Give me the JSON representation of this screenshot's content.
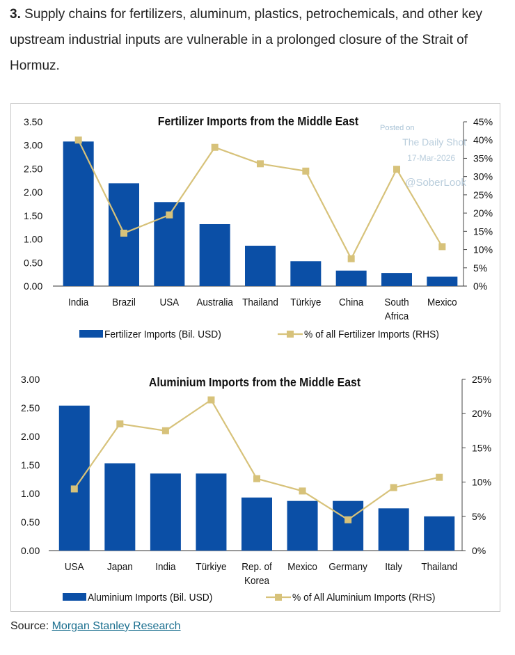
{
  "intro": {
    "number": "3.",
    "text": "Supply chains for fertilizers, aluminum, plastics, petrochemicals, and other key upstream industrial inputs are vulnerable in a prolonged closure of the Strait of Hormuz."
  },
  "watermark": {
    "line1": "Posted on",
    "line2": "The Daily Shot",
    "line3": "17-Mar-2026",
    "line4": "@SoberLook"
  },
  "source": {
    "label": "Source:",
    "link_text": "Morgan Stanley Research"
  },
  "colors": {
    "bar": "#0b4fa6",
    "line": "#d7c27a",
    "axis": "#000000"
  },
  "chart_data": [
    {
      "type": "bar",
      "title": "Fertilizer Imports from the Middle East",
      "categories": [
        "India",
        "Brazil",
        "USA",
        "Australia",
        "Thailand",
        "Türkiye",
        "China",
        "South\nAfrica",
        "Mexico"
      ],
      "series": [
        {
          "name": "Fertilizer Imports (Bil. USD)",
          "axis": "left",
          "kind": "bar",
          "values": [
            3.08,
            2.19,
            1.79,
            1.32,
            0.86,
            0.53,
            0.33,
            0.28,
            0.2
          ]
        },
        {
          "name": "% of all Fertilizer Imports (RHS)",
          "axis": "right",
          "kind": "line",
          "values": [
            40.0,
            14.5,
            19.5,
            38.0,
            33.5,
            31.5,
            7.5,
            32.0,
            10.8
          ]
        }
      ],
      "yleft": {
        "min": 0,
        "max": 3.5,
        "ticks": [
          "0.00",
          "0.50",
          "1.00",
          "1.50",
          "2.00",
          "2.50",
          "3.00",
          "3.50"
        ]
      },
      "yright": {
        "min": 0,
        "max": 45,
        "ticks": [
          "0%",
          "5%",
          "10%",
          "15%",
          "20%",
          "25%",
          "30%",
          "35%",
          "40%",
          "45%"
        ]
      },
      "legend_position": "bottom"
    },
    {
      "type": "bar",
      "title": "Aluminium Imports from the Middle East",
      "categories": [
        "USA",
        "Japan",
        "India",
        "Türkiye",
        "Rep. of\nKorea",
        "Mexico",
        "Germany",
        "Italy",
        "Thailand"
      ],
      "series": [
        {
          "name": "Aluminium Imports (Bil. USD)",
          "axis": "left",
          "kind": "bar",
          "values": [
            2.54,
            1.53,
            1.35,
            1.35,
            0.93,
            0.87,
            0.87,
            0.74,
            0.6
          ]
        },
        {
          "name": "% of All Aluminium Imports (RHS)",
          "axis": "right",
          "kind": "line",
          "values": [
            9.0,
            18.5,
            17.5,
            22.0,
            10.5,
            8.7,
            4.5,
            9.2,
            10.7
          ]
        }
      ],
      "yleft": {
        "min": 0,
        "max": 3.0,
        "ticks": [
          "0.00",
          "0.50",
          "1.00",
          "1.50",
          "2.00",
          "2.50",
          "3.00"
        ]
      },
      "yright": {
        "min": 0,
        "max": 25,
        "ticks": [
          "0%",
          "5%",
          "10%",
          "15%",
          "20%",
          "25%"
        ]
      },
      "legend_position": "bottom"
    }
  ]
}
